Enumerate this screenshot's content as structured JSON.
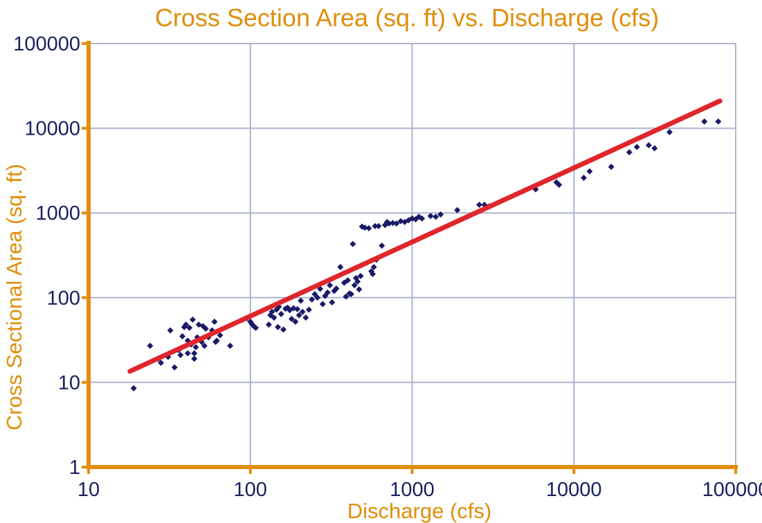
{
  "colors": {
    "title": "#E08E0B",
    "axis": "#E08E0B",
    "grid": "#AEB3CF",
    "tick_label": "#1A2060",
    "points": "#1A1A66",
    "trendline": "#E0252B",
    "background": "#FFFFFF"
  },
  "chart_data": {
    "type": "scatter",
    "title": "Cross Section Area (sq. ft) vs. Discharge (cfs)",
    "xlabel": "Discharge (cfs)",
    "ylabel": "Cross Sectional Area (sq. ft)",
    "x_scale": "log",
    "y_scale": "log",
    "xlim": [
      10,
      100000
    ],
    "ylim": [
      1,
      100000
    ],
    "x_ticks": [
      "10",
      "100",
      "1000",
      "10000",
      "100000"
    ],
    "y_ticks": [
      "1",
      "10",
      "100",
      "1000",
      "10000",
      "100000"
    ],
    "grid": true,
    "legend": "none",
    "series": [
      {
        "marker": "diamond",
        "points": [
          [
            19,
            8.5
          ],
          [
            24,
            27
          ],
          [
            27,
            19
          ],
          [
            28,
            17
          ],
          [
            31,
            20
          ],
          [
            32,
            41
          ],
          [
            34,
            15
          ],
          [
            36,
            24
          ],
          [
            37,
            21
          ],
          [
            38,
            35
          ],
          [
            39,
            45
          ],
          [
            40,
            48
          ],
          [
            41,
            22
          ],
          [
            41,
            31
          ],
          [
            42,
            44
          ],
          [
            43,
            28
          ],
          [
            44,
            55
          ],
          [
            45,
            19
          ],
          [
            45,
            22
          ],
          [
            46,
            26
          ],
          [
            47,
            34
          ],
          [
            48,
            48
          ],
          [
            50,
            30
          ],
          [
            51,
            46
          ],
          [
            52,
            27
          ],
          [
            53,
            43
          ],
          [
            55,
            34
          ],
          [
            58,
            41
          ],
          [
            60,
            52
          ],
          [
            61,
            30
          ],
          [
            62,
            31
          ],
          [
            65,
            36
          ],
          [
            75,
            27
          ],
          [
            90,
            55
          ],
          [
            95,
            57
          ],
          [
            100,
            52
          ],
          [
            102,
            49
          ],
          [
            105,
            46
          ],
          [
            108,
            44
          ],
          [
            130,
            48
          ],
          [
            133,
            62
          ],
          [
            136,
            68
          ],
          [
            140,
            58
          ],
          [
            145,
            72
          ],
          [
            148,
            45
          ],
          [
            150,
            78
          ],
          [
            155,
            64
          ],
          [
            160,
            42
          ],
          [
            165,
            74
          ],
          [
            170,
            76
          ],
          [
            175,
            71
          ],
          [
            180,
            56
          ],
          [
            185,
            75
          ],
          [
            190,
            52
          ],
          [
            195,
            73
          ],
          [
            200,
            62
          ],
          [
            205,
            92
          ],
          [
            210,
            68
          ],
          [
            220,
            58
          ],
          [
            230,
            72
          ],
          [
            240,
            95
          ],
          [
            250,
            110
          ],
          [
            260,
            100
          ],
          [
            270,
            127
          ],
          [
            280,
            84
          ],
          [
            290,
            105
          ],
          [
            300,
            115
          ],
          [
            310,
            140
          ],
          [
            320,
            88
          ],
          [
            330,
            120
          ],
          [
            340,
            128
          ],
          [
            360,
            230
          ],
          [
            380,
            150
          ],
          [
            390,
            103
          ],
          [
            400,
            160
          ],
          [
            410,
            112
          ],
          [
            420,
            110
          ],
          [
            430,
            430
          ],
          [
            440,
            140
          ],
          [
            450,
            170
          ],
          [
            460,
            155
          ],
          [
            470,
            125
          ],
          [
            480,
            180
          ],
          [
            490,
            690
          ],
          [
            510,
            670
          ],
          [
            540,
            660
          ],
          [
            560,
            205
          ],
          [
            570,
            190
          ],
          [
            580,
            230
          ],
          [
            590,
            700
          ],
          [
            600,
            280
          ],
          [
            620,
            700
          ],
          [
            650,
            410
          ],
          [
            680,
            720
          ],
          [
            700,
            780
          ],
          [
            720,
            750
          ],
          [
            760,
            760
          ],
          [
            800,
            750
          ],
          [
            850,
            800
          ],
          [
            900,
            780
          ],
          [
            950,
            820
          ],
          [
            1000,
            860
          ],
          [
            1050,
            840
          ],
          [
            1100,
            900
          ],
          [
            1150,
            860
          ],
          [
            1300,
            920
          ],
          [
            1400,
            900
          ],
          [
            1500,
            960
          ],
          [
            1900,
            1080
          ],
          [
            2600,
            1250
          ],
          [
            2800,
            1250
          ],
          [
            3000,
            1200
          ],
          [
            5800,
            1900
          ],
          [
            7800,
            2300
          ],
          [
            8100,
            2150
          ],
          [
            11500,
            2600
          ],
          [
            12500,
            3100
          ],
          [
            17000,
            3500
          ],
          [
            22000,
            5200
          ],
          [
            24500,
            6000
          ],
          [
            29000,
            6300
          ],
          [
            31500,
            5800
          ],
          [
            39000,
            9000
          ],
          [
            64000,
            12000
          ],
          [
            78000,
            12000
          ]
        ]
      }
    ],
    "trendline": {
      "type": "power",
      "points": [
        [
          18,
          13.5
        ],
        [
          80000,
          21000
        ]
      ]
    }
  }
}
